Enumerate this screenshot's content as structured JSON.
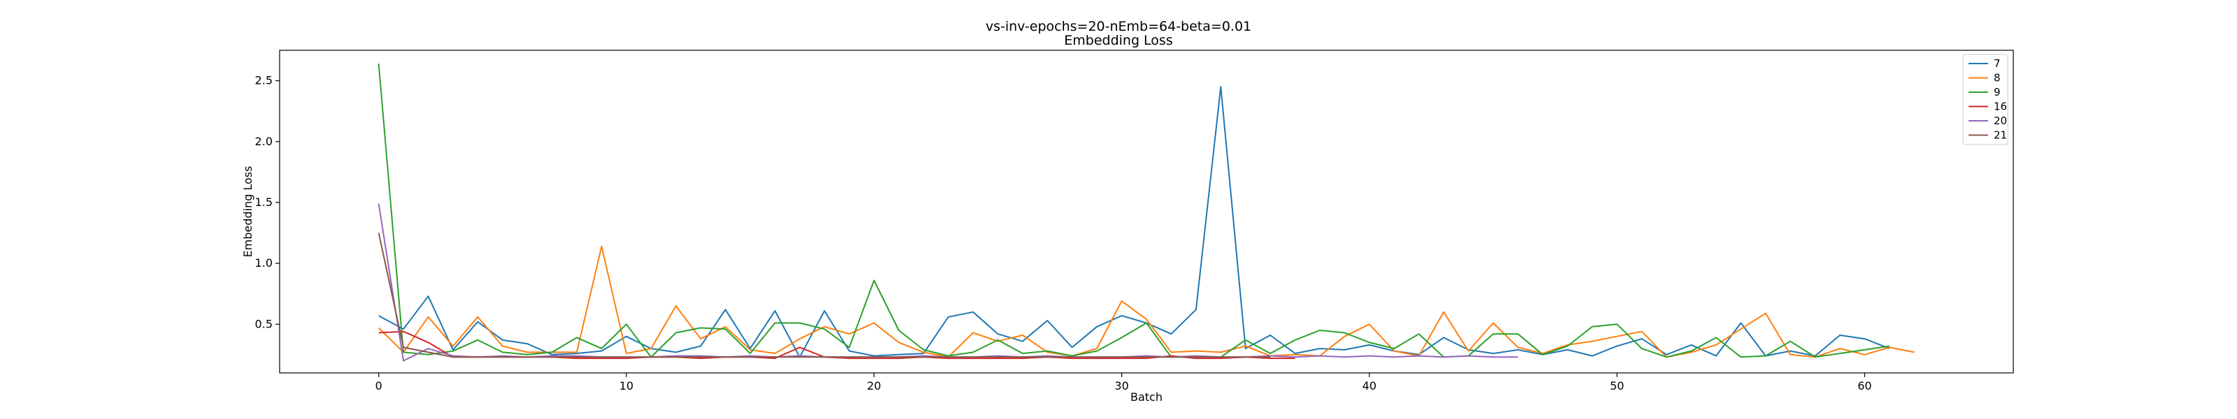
{
  "chart_data": {
    "type": "line",
    "title": "vs-inv-epochs=20-nEmb=64-beta=0.01",
    "subtitle": "Embedding Loss",
    "xlabel": "Batch",
    "ylabel": "Embedding Loss",
    "xlim": [
      -4,
      66
    ],
    "ylim": [
      0.1,
      2.75
    ],
    "xticks": [
      0,
      10,
      20,
      30,
      40,
      50,
      60
    ],
    "yticks": [
      0.5,
      1.0,
      1.5,
      2.0,
      2.5
    ],
    "xtick_labels": [
      "0",
      "10",
      "20",
      "30",
      "40",
      "50",
      "60"
    ],
    "ytick_labels": [
      "0.5",
      "1.0",
      "1.5",
      "2.0",
      "2.5"
    ],
    "grid": false,
    "legend_position": "top-right",
    "series": [
      {
        "name": "7",
        "color": "#1f77b4",
        "values": [
          0.57,
          0.46,
          0.73,
          0.29,
          0.52,
          0.37,
          0.34,
          0.25,
          0.26,
          0.28,
          0.4,
          0.3,
          0.27,
          0.32,
          0.62,
          0.3,
          0.61,
          0.23,
          0.61,
          0.28,
          0.24,
          0.25,
          0.26,
          0.56,
          0.6,
          0.42,
          0.36,
          0.53,
          0.31,
          0.48,
          0.57,
          0.51,
          0.42,
          0.62,
          2.45,
          0.3,
          0.41,
          0.26,
          0.3,
          0.29,
          0.33,
          0.28,
          0.25,
          0.39,
          0.29,
          0.26,
          0.29,
          0.25,
          0.29,
          0.24,
          0.32,
          0.38,
          0.25,
          0.33,
          0.24,
          0.51,
          0.24,
          0.28,
          0.24,
          0.41,
          0.38,
          0.3
        ]
      },
      {
        "name": "8",
        "color": "#ff7f0e",
        "values": [
          0.47,
          0.27,
          0.56,
          0.32,
          0.56,
          0.32,
          0.27,
          0.27,
          0.27,
          1.14,
          0.26,
          0.3,
          0.65,
          0.38,
          0.48,
          0.29,
          0.26,
          0.38,
          0.48,
          0.42,
          0.51,
          0.35,
          0.27,
          0.23,
          0.43,
          0.36,
          0.41,
          0.27,
          0.24,
          0.3,
          0.69,
          0.54,
          0.27,
          0.28,
          0.27,
          0.32,
          0.24,
          0.25,
          0.24,
          0.4,
          0.5,
          0.28,
          0.24,
          0.6,
          0.28,
          0.51,
          0.31,
          0.26,
          0.33,
          0.36,
          0.4,
          0.44,
          0.23,
          0.27,
          0.33,
          0.46,
          0.59,
          0.25,
          0.23,
          0.3,
          0.25,
          0.31,
          0.27
        ]
      },
      {
        "name": "9",
        "color": "#2ca02c",
        "values": [
          2.64,
          0.27,
          0.25,
          0.28,
          0.37,
          0.27,
          0.25,
          0.27,
          0.39,
          0.3,
          0.5,
          0.23,
          0.43,
          0.47,
          0.46,
          0.26,
          0.51,
          0.51,
          0.46,
          0.31,
          0.86,
          0.45,
          0.29,
          0.24,
          0.27,
          0.37,
          0.26,
          0.28,
          0.24,
          0.28,
          0.39,
          0.51,
          0.23,
          0.23,
          0.23,
          0.37,
          0.26,
          0.37,
          0.45,
          0.43,
          0.35,
          0.3,
          0.42,
          0.23,
          0.24,
          0.42,
          0.42,
          0.25,
          0.32,
          0.48,
          0.5,
          0.3,
          0.23,
          0.28,
          0.39,
          0.23,
          0.24,
          0.36,
          0.23,
          0.26,
          0.29,
          0.32
        ]
      },
      {
        "name": "16",
        "color": "#d62728",
        "values": [
          0.43,
          0.44,
          0.35,
          0.23,
          0.23,
          0.23,
          0.23,
          0.23,
          0.22,
          0.22,
          0.22,
          0.23,
          0.23,
          0.22,
          0.23,
          0.23,
          0.22,
          0.31,
          0.23,
          0.22,
          0.22,
          0.22,
          0.23,
          0.22,
          0.22,
          0.22,
          0.22,
          0.23,
          0.22,
          0.22,
          0.22,
          0.22,
          0.24,
          0.22,
          0.22,
          0.23,
          0.22,
          0.22
        ]
      },
      {
        "name": "20",
        "color": "#9467bd",
        "values": [
          1.49,
          0.2,
          0.3,
          0.24,
          0.23,
          0.24,
          0.23,
          0.24,
          0.24,
          0.23,
          0.23,
          0.23,
          0.24,
          0.24,
          0.23,
          0.24,
          0.23,
          0.24,
          0.23,
          0.23,
          0.23,
          0.23,
          0.24,
          0.23,
          0.23,
          0.24,
          0.23,
          0.24,
          0.23,
          0.23,
          0.23,
          0.24,
          0.23,
          0.24,
          0.23,
          0.23,
          0.24,
          0.23,
          0.24,
          0.23,
          0.24,
          0.23,
          0.24,
          0.23,
          0.24,
          0.23,
          0.23
        ]
      },
      {
        "name": "21",
        "color": "#8c564b",
        "values": [
          1.25,
          0.31,
          0.27,
          0.23,
          0.23,
          0.23,
          0.23,
          0.23,
          0.23,
          0.23,
          0.23,
          0.23,
          0.23,
          0.23,
          0.23,
          0.23,
          0.23,
          0.23,
          0.23,
          0.23,
          0.23,
          0.23,
          0.23,
          0.23,
          0.23,
          0.23,
          0.23,
          0.23,
          0.23,
          0.23,
          0.23,
          0.23,
          0.23,
          0.23,
          0.23,
          0.23,
          0.23
        ]
      }
    ]
  }
}
